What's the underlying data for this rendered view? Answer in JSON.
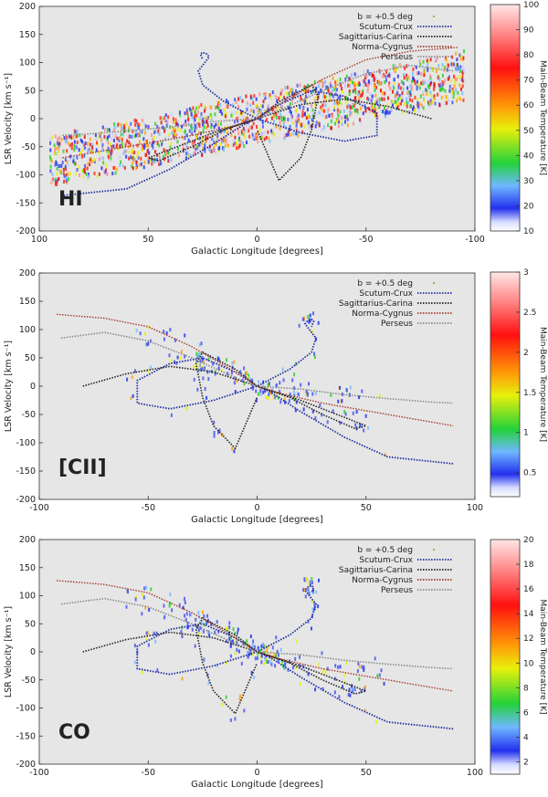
{
  "figure": {
    "chart_data": [
      {
        "type": "scatter",
        "panel_label": "HI",
        "xlabel": "Galactic Longitude [degrees]",
        "ylabel": "LSR Velocity [km s⁻¹]",
        "xlim": [
          100,
          -100
        ],
        "ylim": [
          -200,
          200
        ],
        "x_ticks": [
          "100",
          "50",
          "0",
          "-50",
          "-100"
        ],
        "x_tick_values": [
          100,
          50,
          0,
          -50,
          -100
        ],
        "y_ticks": [
          "200",
          "150",
          "100",
          "50",
          "0",
          "-50",
          "-100",
          "-150",
          "-200"
        ],
        "y_tick_values": [
          200,
          150,
          100,
          50,
          0,
          -50,
          -100,
          -150,
          -200
        ],
        "colorbar": {
          "label": "Main-Beam Temperature [K]",
          "min": 10,
          "max": 100,
          "ticks": [
            "100",
            "90",
            "80",
            "70",
            "60",
            "50",
            "40",
            "30",
            "20",
            "10"
          ],
          "tick_values": [
            100,
            90,
            80,
            70,
            60,
            50,
            40,
            30,
            20,
            10
          ]
        },
        "legend": [
          "b = +0.5 deg",
          "Scutum-Crux",
          "Sagittarius-Carina",
          "Norma-Cygnus",
          "Perseus"
        ],
        "legend_position": "top-right",
        "x_order": "descending",
        "grid": false
      },
      {
        "type": "scatter",
        "panel_label": "[CII]",
        "xlabel": "Galactic Longitude [degrees]",
        "ylabel": "LSR Velocity [km s⁻¹]",
        "xlim": [
          -100,
          100
        ],
        "ylim": [
          -200,
          200
        ],
        "x_ticks": [
          "-100",
          "-50",
          "0",
          "50",
          "100"
        ],
        "x_tick_values": [
          -100,
          -50,
          0,
          50,
          100
        ],
        "y_ticks": [
          "200",
          "150",
          "100",
          "50",
          "0",
          "-50",
          "-100",
          "-150",
          "-200"
        ],
        "y_tick_values": [
          200,
          150,
          100,
          50,
          0,
          -50,
          -100,
          -150,
          -200
        ],
        "colorbar": {
          "label": "Main-Beam Temperature [K]",
          "min": 0.2,
          "max": 3,
          "ticks": [
            "3",
            "2.5",
            "2",
            "1.5",
            "1",
            "0.5"
          ],
          "tick_values": [
            3,
            2.5,
            2,
            1.5,
            1,
            0.5
          ]
        },
        "legend": [
          "b = +0.5 deg",
          "Scutum-Crux",
          "Sagittarius-Carina",
          "Norma-Cygnus",
          "Perseus"
        ],
        "legend_position": "top-right",
        "x_order": "ascending",
        "grid": false
      },
      {
        "type": "scatter",
        "panel_label": "CO",
        "xlabel": "Galactic Longitude [degrees]",
        "ylabel": "LSR Velocity [km s⁻¹]",
        "xlim": [
          -100,
          100
        ],
        "ylim": [
          -200,
          200
        ],
        "x_ticks": [
          "-100",
          "-50",
          "0",
          "50",
          "100"
        ],
        "x_tick_values": [
          -100,
          -50,
          0,
          50,
          100
        ],
        "y_ticks": [
          "200",
          "150",
          "100",
          "50",
          "0",
          "-50",
          "-100",
          "-150",
          "-200"
        ],
        "y_tick_values": [
          200,
          150,
          100,
          50,
          0,
          -50,
          -100,
          -150,
          -200
        ],
        "colorbar": {
          "label": "Main-Beam Temperature [K]",
          "min": 1,
          "max": 20,
          "ticks": [
            "20",
            "18",
            "16",
            "14",
            "12",
            "10",
            "8",
            "6",
            "4",
            "2"
          ],
          "tick_values": [
            20,
            18,
            16,
            14,
            12,
            10,
            8,
            6,
            4,
            2
          ]
        },
        "legend": [
          "b = +0.5 deg",
          "Scutum-Crux",
          "Sagittarius-Carina",
          "Norma-Cygnus",
          "Perseus"
        ],
        "legend_position": "top-right",
        "x_order": "ascending",
        "grid": false
      }
    ],
    "series_colors": {
      "b = +0.5 deg": "#8fb84a",
      "Scutum-Crux": "#1f2f9e",
      "Sagittarius-Carina": "#222222",
      "Norma-Cygnus": "#a33a2a",
      "Perseus": "#8a8a8a"
    },
    "plot_background": "#e6e6e6",
    "spiral_arm_curves": [
      {
        "name": "Scutum-Crux",
        "x": [
          90,
          60,
          40,
          20,
          10,
          5,
          0,
          -10,
          -25,
          -40,
          -55,
          -55,
          -40,
          -20,
          0,
          15,
          25,
          27,
          24,
          22,
          23,
          25,
          26,
          25
        ],
        "y": [
          -137,
          -125,
          -90,
          -45,
          -20,
          -8,
          0,
          25,
          50,
          40,
          10,
          -30,
          -40,
          -25,
          0,
          30,
          60,
          85,
          100,
          110,
          115,
          118,
          115,
          105
        ]
      },
      {
        "name": "Sagittarius-Carina",
        "x": [
          -80,
          -60,
          -40,
          -20,
          0,
          20,
          40,
          50,
          45,
          30,
          15,
          0,
          -10,
          -20,
          -25,
          -28,
          -25,
          -20,
          -10,
          0
        ],
        "y": [
          0,
          22,
          35,
          25,
          0,
          -25,
          -55,
          -70,
          -75,
          -50,
          -20,
          0,
          30,
          50,
          60,
          40,
          -20,
          -70,
          -110,
          -20
        ]
      },
      {
        "name": "Norma-Cygnus",
        "x": [
          -92,
          -70,
          -50,
          -30,
          -10,
          0,
          10,
          30,
          60,
          90
        ],
        "y": [
          127,
          120,
          105,
          70,
          25,
          0,
          -12,
          -30,
          -50,
          -70
        ]
      },
      {
        "name": "Perseus",
        "x": [
          -90,
          -70,
          -50,
          -30,
          -10,
          0,
          20,
          40,
          60,
          80,
          90
        ],
        "y": [
          85,
          95,
          80,
          50,
          15,
          0,
          -5,
          -15,
          -22,
          -28,
          -30
        ]
      }
    ]
  }
}
